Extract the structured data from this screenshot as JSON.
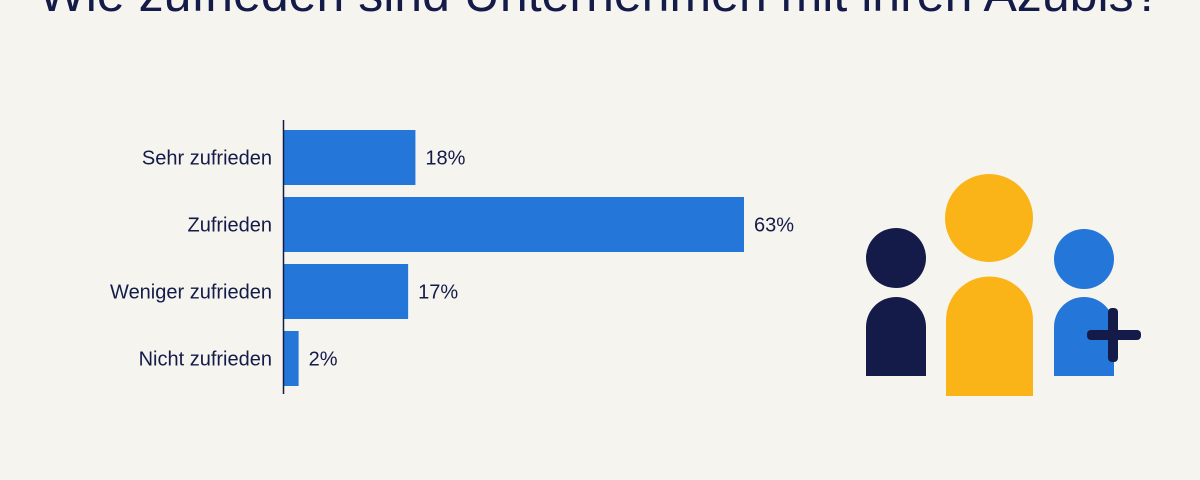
{
  "title": "Wie zufrieden sind Unternehmen mit ihren Azubis?",
  "colors": {
    "background": "#f5f4ef",
    "bar": "#2476d9",
    "text": "#141b48",
    "person_dark": "#141b48",
    "person_yellow": "#fbb417",
    "person_blue": "#2476d9"
  },
  "chart_data": {
    "type": "bar",
    "orientation": "horizontal",
    "title": "Wie zufrieden sind Unternehmen mit ihren Azubis?",
    "categories": [
      "Sehr zufrieden",
      "Zufrieden",
      "Weniger zufrieden",
      "Nicht zufrieden"
    ],
    "values": [
      18,
      63,
      17,
      2
    ],
    "value_labels": [
      "18%",
      "63%",
      "17%",
      "2%"
    ],
    "unit": "%",
    "xlim": [
      0,
      63
    ],
    "grid": false,
    "legend": "none"
  },
  "illustration": {
    "icons": [
      "person-dark-icon",
      "person-yellow-icon",
      "person-blue-icon",
      "plus-icon"
    ]
  }
}
